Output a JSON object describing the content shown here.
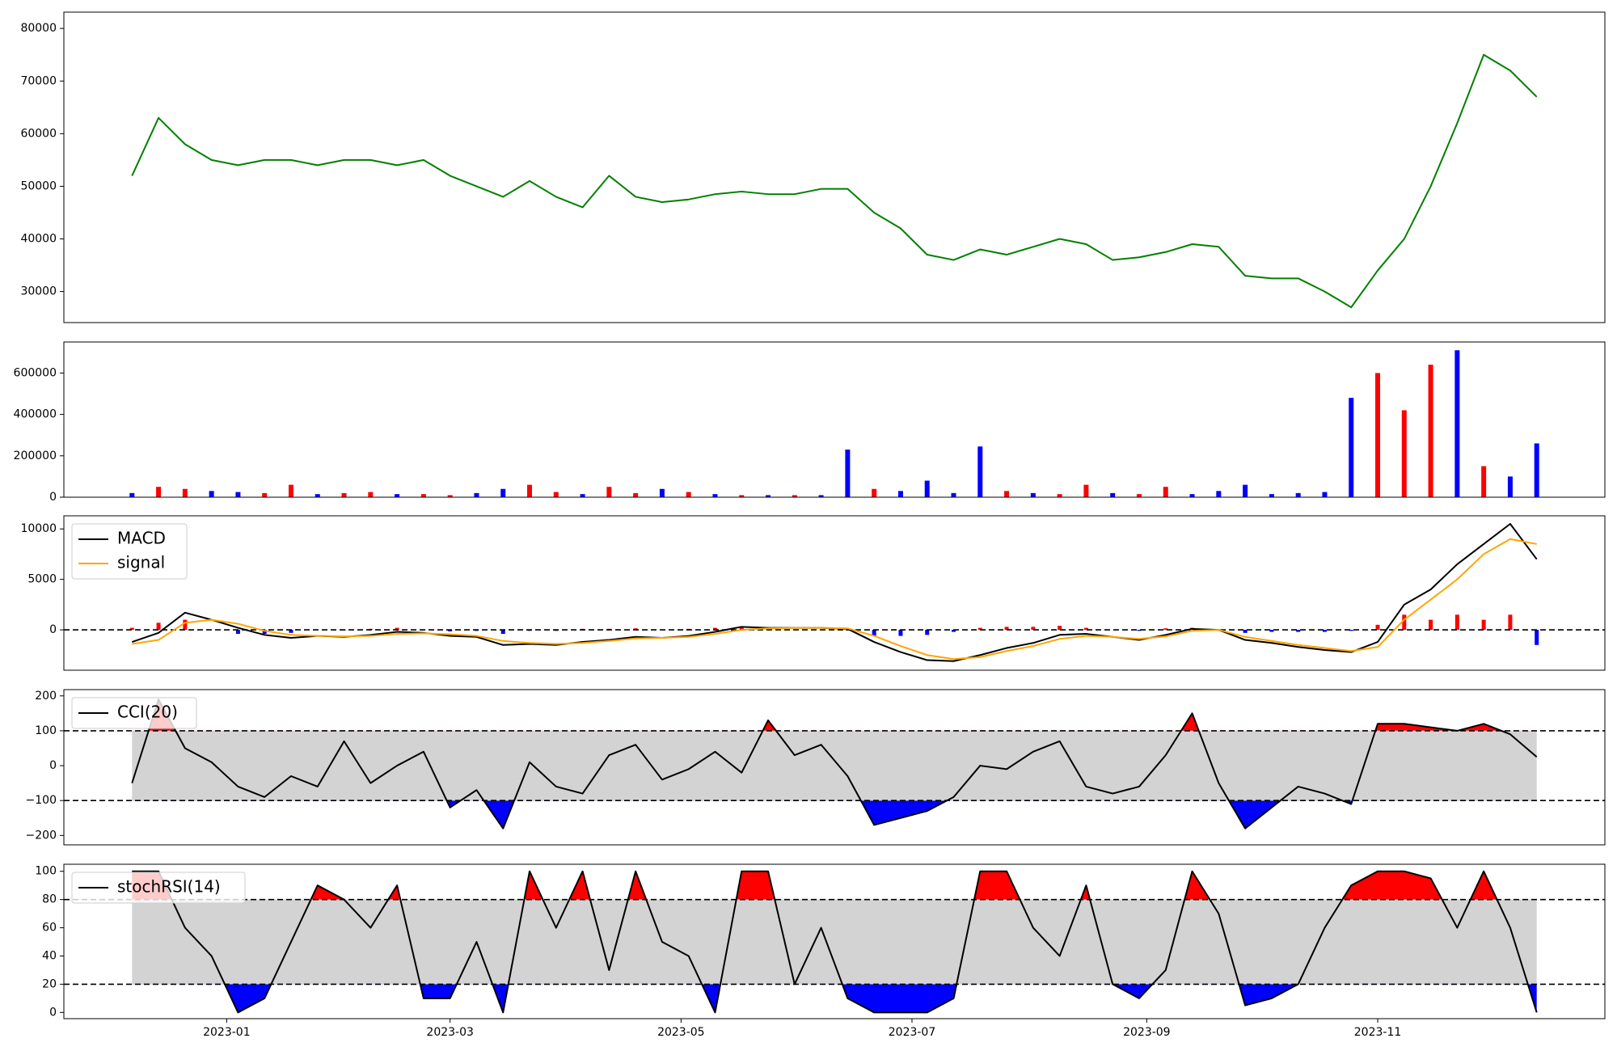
{
  "chart_data": [
    {
      "type": "line",
      "color": "green",
      "x": [
        "2022-12-07",
        "2022-12-14",
        "2022-12-21",
        "2022-12-28",
        "2023-01-04",
        "2023-01-11",
        "2023-01-18",
        "2023-01-25",
        "2023-02-01",
        "2023-02-08",
        "2023-02-15",
        "2023-02-22",
        "2023-03-01",
        "2023-03-08",
        "2023-03-15",
        "2023-03-22",
        "2023-03-29",
        "2023-04-05",
        "2023-04-12",
        "2023-04-19",
        "2023-04-26",
        "2023-05-03",
        "2023-05-10",
        "2023-05-17",
        "2023-05-24",
        "2023-05-31",
        "2023-06-07",
        "2023-06-14",
        "2023-06-21",
        "2023-06-28",
        "2023-07-05",
        "2023-07-12",
        "2023-07-19",
        "2023-07-26",
        "2023-08-02",
        "2023-08-09",
        "2023-08-16",
        "2023-08-23",
        "2023-08-30",
        "2023-09-06",
        "2023-09-13",
        "2023-09-20",
        "2023-09-27",
        "2023-10-04",
        "2023-10-11",
        "2023-10-18",
        "2023-10-25",
        "2023-11-01",
        "2023-11-08",
        "2023-11-15",
        "2023-11-22",
        "2023-11-29",
        "2023-12-06",
        "2023-12-13"
      ],
      "values": [
        52000,
        63000,
        58000,
        55000,
        54000,
        55000,
        55000,
        54000,
        55000,
        55000,
        54000,
        55000,
        52000,
        50000,
        48000,
        51000,
        48000,
        46000,
        52000,
        48000,
        47000,
        47500,
        48500,
        49000,
        48500,
        48500,
        49500,
        49500,
        45000,
        42000,
        37000,
        36000,
        38000,
        37000,
        38500,
        40000,
        39000,
        36000,
        36500,
        37500,
        39000,
        38500,
        33000,
        32500,
        32500,
        30000,
        27000,
        34000,
        40000,
        50000,
        62000,
        75000,
        72000,
        67000
      ],
      "xlim": [
        "2022-11-19",
        "2023-12-31"
      ],
      "ylim": [
        24100,
        83100
      ],
      "yticks": [
        30000,
        40000,
        50000,
        60000,
        70000,
        80000
      ]
    },
    {
      "type": "bar",
      "x": [
        "2022-12-07",
        "2022-12-14",
        "2022-12-21",
        "2022-12-28",
        "2023-01-04",
        "2023-01-11",
        "2023-01-18",
        "2023-01-25",
        "2023-02-01",
        "2023-02-08",
        "2023-02-15",
        "2023-02-22",
        "2023-03-01",
        "2023-03-08",
        "2023-03-15",
        "2023-03-22",
        "2023-03-29",
        "2023-04-05",
        "2023-04-12",
        "2023-04-19",
        "2023-04-26",
        "2023-05-03",
        "2023-05-10",
        "2023-05-17",
        "2023-05-24",
        "2023-05-31",
        "2023-06-07",
        "2023-06-14",
        "2023-06-21",
        "2023-06-28",
        "2023-07-05",
        "2023-07-12",
        "2023-07-19",
        "2023-07-26",
        "2023-08-02",
        "2023-08-09",
        "2023-08-16",
        "2023-08-23",
        "2023-08-30",
        "2023-09-06",
        "2023-09-13",
        "2023-09-20",
        "2023-09-27",
        "2023-10-04",
        "2023-10-11",
        "2023-10-18",
        "2023-10-25",
        "2023-11-01",
        "2023-11-08",
        "2023-11-15",
        "2023-11-22",
        "2023-11-29",
        "2023-12-06",
        "2023-12-13"
      ],
      "values": [
        20000,
        50000,
        40000,
        30000,
        25000,
        20000,
        60000,
        15000,
        20000,
        25000,
        15000,
        15000,
        10000,
        20000,
        40000,
        60000,
        25000,
        15000,
        50000,
        20000,
        40000,
        25000,
        15000,
        10000,
        10000,
        10000,
        10000,
        230000,
        40000,
        30000,
        80000,
        20000,
        245000,
        30000,
        20000,
        15000,
        60000,
        20000,
        15000,
        50000,
        15000,
        30000,
        60000,
        15000,
        20000,
        25000,
        480000,
        600000,
        420000,
        640000,
        710000,
        150000,
        100000,
        260000
      ],
      "colors": [
        "blue",
        "red",
        "red",
        "blue",
        "blue",
        "red",
        "red",
        "blue",
        "red",
        "red",
        "blue",
        "red",
        "red",
        "blue",
        "blue",
        "red",
        "red",
        "blue",
        "red",
        "red",
        "blue",
        "red",
        "blue",
        "red",
        "blue",
        "red",
        "blue",
        "blue",
        "red",
        "blue",
        "blue",
        "blue",
        "blue",
        "red",
        "blue",
        "red",
        "red",
        "blue",
        "red",
        "red",
        "blue",
        "blue",
        "blue",
        "blue",
        "blue",
        "blue",
        "blue",
        "red",
        "red",
        "red",
        "blue",
        "red",
        "blue",
        "blue"
      ],
      "xlim": [
        "2022-11-19",
        "2023-12-31"
      ],
      "ylim": [
        0,
        750000
      ],
      "yticks": [
        0,
        200000,
        400000,
        600000
      ]
    },
    {
      "type": "macd",
      "x": [
        "2022-12-07",
        "2022-12-14",
        "2022-12-21",
        "2022-12-28",
        "2023-01-04",
        "2023-01-11",
        "2023-01-18",
        "2023-01-25",
        "2023-02-01",
        "2023-02-08",
        "2023-02-15",
        "2023-02-22",
        "2023-03-01",
        "2023-03-08",
        "2023-03-15",
        "2023-03-22",
        "2023-03-29",
        "2023-04-05",
        "2023-04-12",
        "2023-04-19",
        "2023-04-26",
        "2023-05-03",
        "2023-05-10",
        "2023-05-17",
        "2023-05-24",
        "2023-05-31",
        "2023-06-07",
        "2023-06-14",
        "2023-06-21",
        "2023-06-28",
        "2023-07-05",
        "2023-07-12",
        "2023-07-19",
        "2023-07-26",
        "2023-08-02",
        "2023-08-09",
        "2023-08-16",
        "2023-08-23",
        "2023-08-30",
        "2023-09-06",
        "2023-09-13",
        "2023-09-20",
        "2023-09-27",
        "2023-10-04",
        "2023-10-11",
        "2023-10-18",
        "2023-10-25",
        "2023-11-01",
        "2023-11-08",
        "2023-11-15",
        "2023-11-22",
        "2023-11-29",
        "2023-12-06",
        "2023-12-13"
      ],
      "series": [
        {
          "name": "MACD",
          "color": "black",
          "values": [
            -1200,
            -300,
            1700,
            1000,
            200,
            -500,
            -800,
            -600,
            -700,
            -500,
            -200,
            -300,
            -600,
            -700,
            -1500,
            -1400,
            -1500,
            -1200,
            -1000,
            -700,
            -800,
            -600,
            -200,
            300,
            200,
            200,
            200,
            100,
            -1200,
            -2200,
            -3000,
            -3100,
            -2500,
            -1800,
            -1300,
            -500,
            -400,
            -700,
            -1000,
            -500,
            100,
            0,
            -1000,
            -1300,
            -1700,
            -2000,
            -2200,
            -1200,
            2500,
            4000,
            6500,
            8500,
            10500,
            7000
          ]
        },
        {
          "name": "signal",
          "color": "orange",
          "values": [
            -1400,
            -1000,
            700,
            1000,
            600,
            -100,
            -500,
            -600,
            -650,
            -600,
            -400,
            -350,
            -450,
            -600,
            -1100,
            -1300,
            -1400,
            -1300,
            -1100,
            -850,
            -800,
            -700,
            -400,
            0,
            150,
            200,
            200,
            150,
            -600,
            -1600,
            -2500,
            -2900,
            -2700,
            -2100,
            -1600,
            -900,
            -600,
            -700,
            -900,
            -650,
            -100,
            0,
            -700,
            -1100,
            -1500,
            -1800,
            -2100,
            -1700,
            1000,
            3000,
            5000,
            7500,
            9000,
            8500
          ]
        }
      ],
      "histogram": {
        "values": [
          200,
          700,
          1000,
          0,
          -400,
          -400,
          -300,
          0,
          -50,
          100,
          200,
          50,
          -150,
          -100,
          -400,
          -100,
          -100,
          100,
          100,
          150,
          0,
          100,
          200,
          300,
          50,
          0,
          0,
          -50,
          -600,
          -600,
          -500,
          -200,
          200,
          300,
          300,
          400,
          200,
          0,
          -100,
          150,
          200,
          0,
          -300,
          -200,
          -200,
          -200,
          -100,
          500,
          1500,
          1000,
          1500,
          1000,
          1500,
          -1500
        ],
        "up_color": "red",
        "down_color": "blue"
      },
      "hlines": [
        0
      ],
      "legend": "upper left",
      "xlim": [
        "2022-11-19",
        "2023-12-31"
      ],
      "ylim": [
        -4000,
        11300
      ],
      "yticks": [
        0,
        5000,
        10000
      ]
    },
    {
      "type": "band",
      "x": [
        "2022-12-07",
        "2022-12-14",
        "2022-12-21",
        "2022-12-28",
        "2023-01-04",
        "2023-01-11",
        "2023-01-18",
        "2023-01-25",
        "2023-02-01",
        "2023-02-08",
        "2023-02-15",
        "2023-02-22",
        "2023-03-01",
        "2023-03-08",
        "2023-03-15",
        "2023-03-22",
        "2023-03-29",
        "2023-04-05",
        "2023-04-12",
        "2023-04-19",
        "2023-04-26",
        "2023-05-03",
        "2023-05-10",
        "2023-05-17",
        "2023-05-24",
        "2023-05-31",
        "2023-06-07",
        "2023-06-14",
        "2023-06-21",
        "2023-06-28",
        "2023-07-05",
        "2023-07-12",
        "2023-07-19",
        "2023-07-26",
        "2023-08-02",
        "2023-08-09",
        "2023-08-16",
        "2023-08-23",
        "2023-08-30",
        "2023-09-06",
        "2023-09-13",
        "2023-09-20",
        "2023-09-27",
        "2023-10-04",
        "2023-10-11",
        "2023-10-18",
        "2023-10-25",
        "2023-11-01",
        "2023-11-08",
        "2023-11-15",
        "2023-11-22",
        "2023-11-29",
        "2023-12-06",
        "2023-12-13"
      ],
      "series": [
        {
          "name": "CCI(20)",
          "color": "black",
          "values": [
            -50,
            190,
            50,
            10,
            -60,
            -90,
            -30,
            -60,
            70,
            -50,
            0,
            40,
            -120,
            -70,
            -180,
            10,
            -60,
            -80,
            30,
            60,
            -40,
            -10,
            40,
            -20,
            130,
            30,
            60,
            -30,
            -170,
            -150,
            -130,
            -90,
            0,
            -10,
            40,
            70,
            -60,
            -80,
            -60,
            30,
            150,
            -50,
            -180,
            -120,
            -60,
            -80,
            -110,
            120,
            120,
            110,
            100,
            120,
            90,
            25
          ]
        }
      ],
      "bands": [
        -100,
        100
      ],
      "band_color": "lightgray",
      "upper_color": "red",
      "lower_color": "blue",
      "legend": "upper left",
      "xlim": [
        "2022-11-19",
        "2023-12-31"
      ],
      "ylim": [
        -227,
        218
      ],
      "yticks": [
        {
          "value": -200,
          "label": "−200"
        },
        {
          "value": -100,
          "label": "−100"
        },
        0,
        100,
        200
      ]
    },
    {
      "type": "band",
      "x": [
        "2022-12-07",
        "2022-12-14",
        "2022-12-21",
        "2022-12-28",
        "2023-01-04",
        "2023-01-11",
        "2023-01-18",
        "2023-01-25",
        "2023-02-01",
        "2023-02-08",
        "2023-02-15",
        "2023-02-22",
        "2023-03-01",
        "2023-03-08",
        "2023-03-15",
        "2023-03-22",
        "2023-03-29",
        "2023-04-05",
        "2023-04-12",
        "2023-04-19",
        "2023-04-26",
        "2023-05-03",
        "2023-05-10",
        "2023-05-17",
        "2023-05-24",
        "2023-05-31",
        "2023-06-07",
        "2023-06-14",
        "2023-06-21",
        "2023-06-28",
        "2023-07-05",
        "2023-07-12",
        "2023-07-19",
        "2023-07-26",
        "2023-08-02",
        "2023-08-09",
        "2023-08-16",
        "2023-08-23",
        "2023-08-30",
        "2023-09-06",
        "2023-09-13",
        "2023-09-20",
        "2023-09-27",
        "2023-10-04",
        "2023-10-11",
        "2023-10-18",
        "2023-10-25",
        "2023-11-01",
        "2023-11-08",
        "2023-11-15",
        "2023-11-22",
        "2023-11-29",
        "2023-12-06",
        "2023-12-13"
      ],
      "series": [
        {
          "name": "stochRSI(14)",
          "color": "black",
          "values": [
            100,
            100,
            60,
            40,
            0,
            10,
            50,
            90,
            80,
            60,
            90,
            10,
            10,
            50,
            0,
            100,
            60,
            100,
            30,
            100,
            50,
            40,
            0,
            100,
            100,
            20,
            60,
            10,
            0,
            0,
            0,
            10,
            100,
            100,
            60,
            40,
            90,
            20,
            10,
            30,
            100,
            70,
            5,
            10,
            20,
            60,
            90,
            100,
            100,
            95,
            60,
            100,
            60,
            0
          ]
        }
      ],
      "bands": [
        20,
        80
      ],
      "band_color": "lightgray",
      "upper_color": "red",
      "lower_color": "blue",
      "legend": "upper left",
      "xlim": [
        "2022-11-19",
        "2023-12-31"
      ],
      "ylim": [
        -4.4,
        105
      ],
      "yticks": [
        0,
        20,
        40,
        60,
        80,
        100
      ],
      "xticks": [
        {
          "value": "2023-01-01",
          "label": "2023-01"
        },
        {
          "value": "2023-03-01",
          "label": "2023-03"
        },
        {
          "value": "2023-05-01",
          "label": "2023-05"
        },
        {
          "value": "2023-07-01",
          "label": "2023-07"
        },
        {
          "value": "2023-09-01",
          "label": "2023-09"
        },
        {
          "value": "2023-11-01",
          "label": "2023-11"
        }
      ]
    }
  ]
}
